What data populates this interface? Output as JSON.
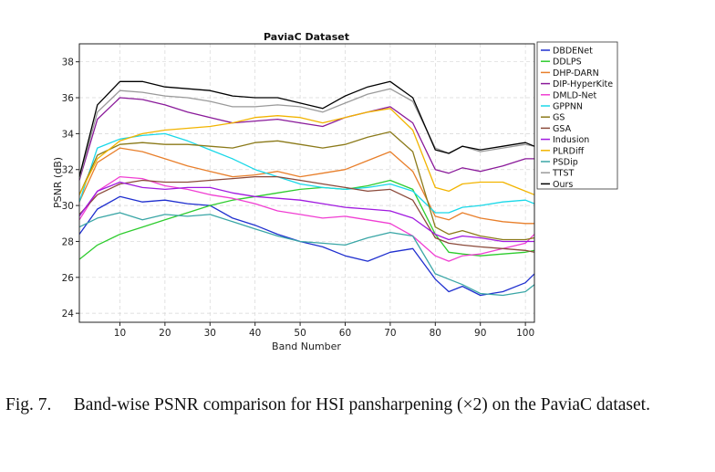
{
  "chart_data": {
    "type": "line",
    "title": "PaviaC Dataset",
    "xlabel": "Band Number",
    "ylabel": "PSNR (dB)",
    "xlim": [
      1,
      102
    ],
    "ylim": [
      23.5,
      39.0
    ],
    "xticks": [
      10,
      20,
      30,
      40,
      50,
      60,
      70,
      80,
      90,
      100
    ],
    "yticks": [
      24,
      26,
      28,
      30,
      32,
      34,
      36,
      38
    ],
    "grid": true,
    "legend_position": "right",
    "series": [
      {
        "name": "DBDENet",
        "color": "#1f2fcf",
        "points": [
          [
            1,
            28.4
          ],
          [
            5,
            29.8
          ],
          [
            10,
            30.5
          ],
          [
            15,
            30.2
          ],
          [
            20,
            30.3
          ],
          [
            25,
            30.1
          ],
          [
            30,
            30.0
          ],
          [
            35,
            29.3
          ],
          [
            40,
            28.9
          ],
          [
            45,
            28.4
          ],
          [
            50,
            28.0
          ],
          [
            55,
            27.7
          ],
          [
            60,
            27.2
          ],
          [
            65,
            26.9
          ],
          [
            70,
            27.4
          ],
          [
            75,
            27.6
          ],
          [
            80,
            25.9
          ],
          [
            83,
            25.2
          ],
          [
            86,
            25.5
          ],
          [
            90,
            25.0
          ],
          [
            95,
            25.2
          ],
          [
            100,
            25.7
          ],
          [
            102,
            26.2
          ]
        ]
      },
      {
        "name": "DDLPS",
        "color": "#2ecc2e",
        "points": [
          [
            1,
            27.0
          ],
          [
            5,
            27.8
          ],
          [
            10,
            28.4
          ],
          [
            15,
            28.8
          ],
          [
            20,
            29.2
          ],
          [
            25,
            29.6
          ],
          [
            30,
            30.0
          ],
          [
            35,
            30.3
          ],
          [
            40,
            30.5
          ],
          [
            45,
            30.7
          ],
          [
            50,
            30.9
          ],
          [
            55,
            31.0
          ],
          [
            60,
            30.9
          ],
          [
            65,
            31.1
          ],
          [
            70,
            31.4
          ],
          [
            75,
            30.9
          ],
          [
            80,
            28.4
          ],
          [
            83,
            27.4
          ],
          [
            86,
            27.3
          ],
          [
            90,
            27.2
          ],
          [
            95,
            27.3
          ],
          [
            100,
            27.4
          ],
          [
            102,
            27.5
          ]
        ]
      },
      {
        "name": "DHP-DARN",
        "color": "#e87f2b",
        "points": [
          [
            1,
            30.2
          ],
          [
            5,
            32.4
          ],
          [
            10,
            33.2
          ],
          [
            15,
            33.0
          ],
          [
            20,
            32.6
          ],
          [
            25,
            32.2
          ],
          [
            30,
            31.9
          ],
          [
            35,
            31.6
          ],
          [
            40,
            31.7
          ],
          [
            45,
            31.9
          ],
          [
            50,
            31.6
          ],
          [
            55,
            31.8
          ],
          [
            60,
            32.0
          ],
          [
            65,
            32.5
          ],
          [
            70,
            33.0
          ],
          [
            75,
            31.9
          ],
          [
            80,
            29.4
          ],
          [
            83,
            29.2
          ],
          [
            86,
            29.6
          ],
          [
            90,
            29.3
          ],
          [
            95,
            29.1
          ],
          [
            100,
            29.0
          ],
          [
            102,
            29.0
          ]
        ]
      },
      {
        "name": "DIP-HyperKite",
        "color": "#8a1a9a",
        "points": [
          [
            1,
            31.4
          ],
          [
            5,
            34.8
          ],
          [
            10,
            36.0
          ],
          [
            15,
            35.9
          ],
          [
            20,
            35.6
          ],
          [
            25,
            35.2
          ],
          [
            30,
            34.9
          ],
          [
            35,
            34.6
          ],
          [
            40,
            34.7
          ],
          [
            45,
            34.8
          ],
          [
            50,
            34.6
          ],
          [
            55,
            34.4
          ],
          [
            60,
            34.9
          ],
          [
            65,
            35.2
          ],
          [
            70,
            35.5
          ],
          [
            75,
            34.6
          ],
          [
            80,
            32.0
          ],
          [
            83,
            31.8
          ],
          [
            86,
            32.1
          ],
          [
            90,
            31.9
          ],
          [
            95,
            32.2
          ],
          [
            100,
            32.6
          ],
          [
            102,
            32.6
          ]
        ]
      },
      {
        "name": "DMLD-Net",
        "color": "#f03ed2",
        "points": [
          [
            1,
            29.2
          ],
          [
            5,
            30.8
          ],
          [
            10,
            31.6
          ],
          [
            15,
            31.5
          ],
          [
            20,
            31.1
          ],
          [
            25,
            30.9
          ],
          [
            30,
            30.6
          ],
          [
            35,
            30.4
          ],
          [
            40,
            30.1
          ],
          [
            45,
            29.7
          ],
          [
            50,
            29.5
          ],
          [
            55,
            29.3
          ],
          [
            60,
            29.4
          ],
          [
            65,
            29.2
          ],
          [
            70,
            29.0
          ],
          [
            75,
            28.3
          ],
          [
            80,
            27.2
          ],
          [
            83,
            26.9
          ],
          [
            86,
            27.2
          ],
          [
            90,
            27.3
          ],
          [
            95,
            27.6
          ],
          [
            100,
            27.9
          ],
          [
            102,
            28.4
          ]
        ]
      },
      {
        "name": "GPPNN",
        "color": "#1ad8e8",
        "points": [
          [
            1,
            30.2
          ],
          [
            5,
            33.2
          ],
          [
            10,
            33.7
          ],
          [
            15,
            33.9
          ],
          [
            20,
            34.0
          ],
          [
            25,
            33.6
          ],
          [
            30,
            33.1
          ],
          [
            35,
            32.6
          ],
          [
            40,
            32.0
          ],
          [
            45,
            31.6
          ],
          [
            50,
            31.2
          ],
          [
            55,
            31.0
          ],
          [
            60,
            30.9
          ],
          [
            65,
            31.0
          ],
          [
            70,
            31.2
          ],
          [
            75,
            30.8
          ],
          [
            80,
            29.6
          ],
          [
            83,
            29.6
          ],
          [
            86,
            29.9
          ],
          [
            90,
            30.0
          ],
          [
            95,
            30.2
          ],
          [
            100,
            30.3
          ],
          [
            102,
            30.1
          ]
        ]
      },
      {
        "name": "GS",
        "color": "#8b7a1a",
        "points": [
          [
            1,
            30.6
          ],
          [
            5,
            32.8
          ],
          [
            10,
            33.4
          ],
          [
            15,
            33.5
          ],
          [
            20,
            33.4
          ],
          [
            25,
            33.4
          ],
          [
            30,
            33.3
          ],
          [
            35,
            33.2
          ],
          [
            40,
            33.5
          ],
          [
            45,
            33.6
          ],
          [
            50,
            33.4
          ],
          [
            55,
            33.2
          ],
          [
            60,
            33.4
          ],
          [
            65,
            33.8
          ],
          [
            70,
            34.1
          ],
          [
            75,
            33.0
          ],
          [
            80,
            28.8
          ],
          [
            83,
            28.4
          ],
          [
            86,
            28.6
          ],
          [
            90,
            28.3
          ],
          [
            95,
            28.1
          ],
          [
            100,
            28.1
          ],
          [
            102,
            28.2
          ]
        ]
      },
      {
        "name": "GSA",
        "color": "#8b4a3a",
        "points": [
          [
            1,
            29.5
          ],
          [
            5,
            30.6
          ],
          [
            10,
            31.2
          ],
          [
            15,
            31.4
          ],
          [
            20,
            31.3
          ],
          [
            25,
            31.3
          ],
          [
            30,
            31.4
          ],
          [
            35,
            31.5
          ],
          [
            40,
            31.6
          ],
          [
            45,
            31.6
          ],
          [
            50,
            31.4
          ],
          [
            55,
            31.2
          ],
          [
            60,
            31.0
          ],
          [
            65,
            30.8
          ],
          [
            70,
            30.9
          ],
          [
            75,
            30.3
          ],
          [
            80,
            28.2
          ],
          [
            83,
            27.9
          ],
          [
            86,
            27.8
          ],
          [
            90,
            27.7
          ],
          [
            95,
            27.6
          ],
          [
            100,
            27.5
          ],
          [
            102,
            27.4
          ]
        ]
      },
      {
        "name": "Indusion",
        "color": "#a01ae0",
        "points": [
          [
            1,
            29.4
          ],
          [
            5,
            30.8
          ],
          [
            10,
            31.3
          ],
          [
            15,
            31.0
          ],
          [
            20,
            30.9
          ],
          [
            25,
            31.0
          ],
          [
            30,
            31.0
          ],
          [
            35,
            30.7
          ],
          [
            40,
            30.5
          ],
          [
            45,
            30.4
          ],
          [
            50,
            30.3
          ],
          [
            55,
            30.1
          ],
          [
            60,
            29.9
          ],
          [
            65,
            29.8
          ],
          [
            70,
            29.7
          ],
          [
            75,
            29.3
          ],
          [
            80,
            28.4
          ],
          [
            83,
            28.1
          ],
          [
            86,
            28.3
          ],
          [
            90,
            28.2
          ],
          [
            95,
            28.0
          ],
          [
            100,
            28.0
          ],
          [
            102,
            28.0
          ]
        ]
      },
      {
        "name": "PLRDiff",
        "color": "#f2b400",
        "points": [
          [
            1,
            30.6
          ],
          [
            5,
            32.6
          ],
          [
            10,
            33.6
          ],
          [
            15,
            34.0
          ],
          [
            20,
            34.2
          ],
          [
            25,
            34.3
          ],
          [
            30,
            34.4
          ],
          [
            35,
            34.6
          ],
          [
            40,
            34.9
          ],
          [
            45,
            35.0
          ],
          [
            50,
            34.9
          ],
          [
            55,
            34.6
          ],
          [
            60,
            34.9
          ],
          [
            65,
            35.2
          ],
          [
            70,
            35.4
          ],
          [
            75,
            34.2
          ],
          [
            80,
            31.0
          ],
          [
            83,
            30.8
          ],
          [
            86,
            31.2
          ],
          [
            90,
            31.3
          ],
          [
            95,
            31.3
          ],
          [
            100,
            30.8
          ],
          [
            102,
            30.6
          ]
        ]
      },
      {
        "name": "PSDip",
        "color": "#3aa6a6",
        "points": [
          [
            1,
            28.8
          ],
          [
            5,
            29.3
          ],
          [
            10,
            29.6
          ],
          [
            15,
            29.2
          ],
          [
            20,
            29.5
          ],
          [
            25,
            29.4
          ],
          [
            30,
            29.5
          ],
          [
            35,
            29.1
          ],
          [
            40,
            28.7
          ],
          [
            45,
            28.3
          ],
          [
            50,
            28.0
          ],
          [
            55,
            27.9
          ],
          [
            60,
            27.8
          ],
          [
            65,
            28.2
          ],
          [
            70,
            28.5
          ],
          [
            75,
            28.3
          ],
          [
            80,
            26.2
          ],
          [
            83,
            25.9
          ],
          [
            86,
            25.6
          ],
          [
            90,
            25.1
          ],
          [
            95,
            25.0
          ],
          [
            100,
            25.2
          ],
          [
            102,
            25.6
          ]
        ]
      },
      {
        "name": "TTST",
        "color": "#9a9a9a",
        "points": [
          [
            1,
            31.5
          ],
          [
            5,
            35.2
          ],
          [
            10,
            36.4
          ],
          [
            15,
            36.3
          ],
          [
            20,
            36.1
          ],
          [
            25,
            36.0
          ],
          [
            30,
            35.8
          ],
          [
            35,
            35.5
          ],
          [
            40,
            35.5
          ],
          [
            45,
            35.6
          ],
          [
            50,
            35.5
          ],
          [
            55,
            35.2
          ],
          [
            60,
            35.7
          ],
          [
            65,
            36.2
          ],
          [
            70,
            36.5
          ],
          [
            75,
            35.8
          ],
          [
            80,
            33.2
          ],
          [
            83,
            32.9
          ],
          [
            86,
            33.3
          ],
          [
            90,
            33.0
          ],
          [
            95,
            33.2
          ],
          [
            100,
            33.4
          ],
          [
            102,
            33.3
          ]
        ]
      },
      {
        "name": "Ours",
        "color": "#000000",
        "points": [
          [
            1,
            31.6
          ],
          [
            5,
            35.6
          ],
          [
            10,
            36.9
          ],
          [
            15,
            36.9
          ],
          [
            20,
            36.6
          ],
          [
            25,
            36.5
          ],
          [
            30,
            36.4
          ],
          [
            35,
            36.1
          ],
          [
            40,
            36.0
          ],
          [
            45,
            36.0
          ],
          [
            50,
            35.7
          ],
          [
            55,
            35.4
          ],
          [
            60,
            36.1
          ],
          [
            65,
            36.6
          ],
          [
            70,
            36.9
          ],
          [
            75,
            36.0
          ],
          [
            80,
            33.1
          ],
          [
            83,
            32.9
          ],
          [
            86,
            33.3
          ],
          [
            90,
            33.1
          ],
          [
            95,
            33.3
          ],
          [
            100,
            33.5
          ],
          [
            102,
            33.3
          ]
        ]
      }
    ]
  },
  "caption": "Fig. 7.  Band-wise PSNR comparison for HSI pansharpening (×2) on the PaviaC dataset."
}
